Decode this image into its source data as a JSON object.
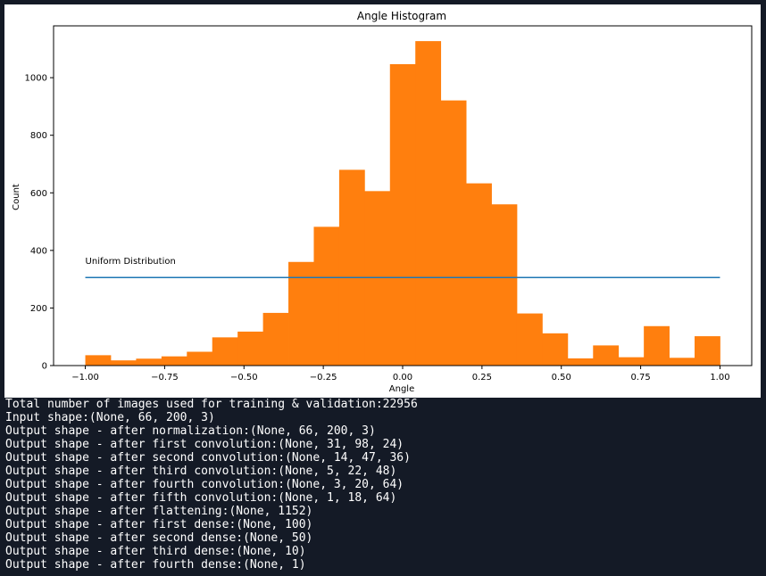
{
  "chart_data": {
    "type": "bar",
    "title": "Angle Histogram",
    "xlabel": "Angle",
    "ylabel": "Count",
    "xlim": [
      -1.1,
      1.1
    ],
    "ylim": [
      0,
      1180
    ],
    "xticks": [
      -1.0,
      -0.75,
      -0.5,
      -0.25,
      0.0,
      0.25,
      0.5,
      0.75,
      1.0
    ],
    "xtick_labels": [
      "−1.00",
      "−0.75",
      "−0.50",
      "−0.25",
      "0.00",
      "0.25",
      "0.50",
      "0.75",
      "1.00"
    ],
    "yticks": [
      0,
      200,
      400,
      600,
      800,
      1000
    ],
    "ytick_labels": [
      "0",
      "200",
      "400",
      "600",
      "800",
      "1000"
    ],
    "grid": false,
    "bar_color": "#ff7f0e",
    "bins": {
      "start": -1.0,
      "width": 0.08,
      "counts": [
        36,
        18,
        24,
        32,
        48,
        98,
        118,
        183,
        360,
        482,
        680,
        606,
        1047,
        1127,
        921,
        633,
        560,
        181,
        112,
        25,
        70,
        29,
        137,
        27,
        102
      ]
    },
    "uniform_line": {
      "x": [
        -1.0,
        1.0
      ],
      "y": 306,
      "color": "#1f77b4",
      "label": "Uniform Distribution"
    }
  },
  "console": {
    "lines": [
      "Total number of images used for training & validation:22956",
      "Input shape:(None, 66, 200, 3)",
      "Output shape - after normalization:(None, 66, 200, 3)",
      "Output shape - after first convolution:(None, 31, 98, 24)",
      "Output shape - after second convolution:(None, 14, 47, 36)",
      "Output shape - after third convolution:(None, 5, 22, 48)",
      "Output shape - after fourth convolution:(None, 3, 20, 64)",
      "Output shape - after fifth convolution:(None, 1, 18, 64)",
      "Output shape - after flattening:(None, 1152)",
      "Output shape - after first dense:(None, 100)",
      "Output shape - after second dense:(None, 50)",
      "Output shape - after third dense:(None, 10)",
      "Output shape - after fourth dense:(None, 1)"
    ]
  }
}
